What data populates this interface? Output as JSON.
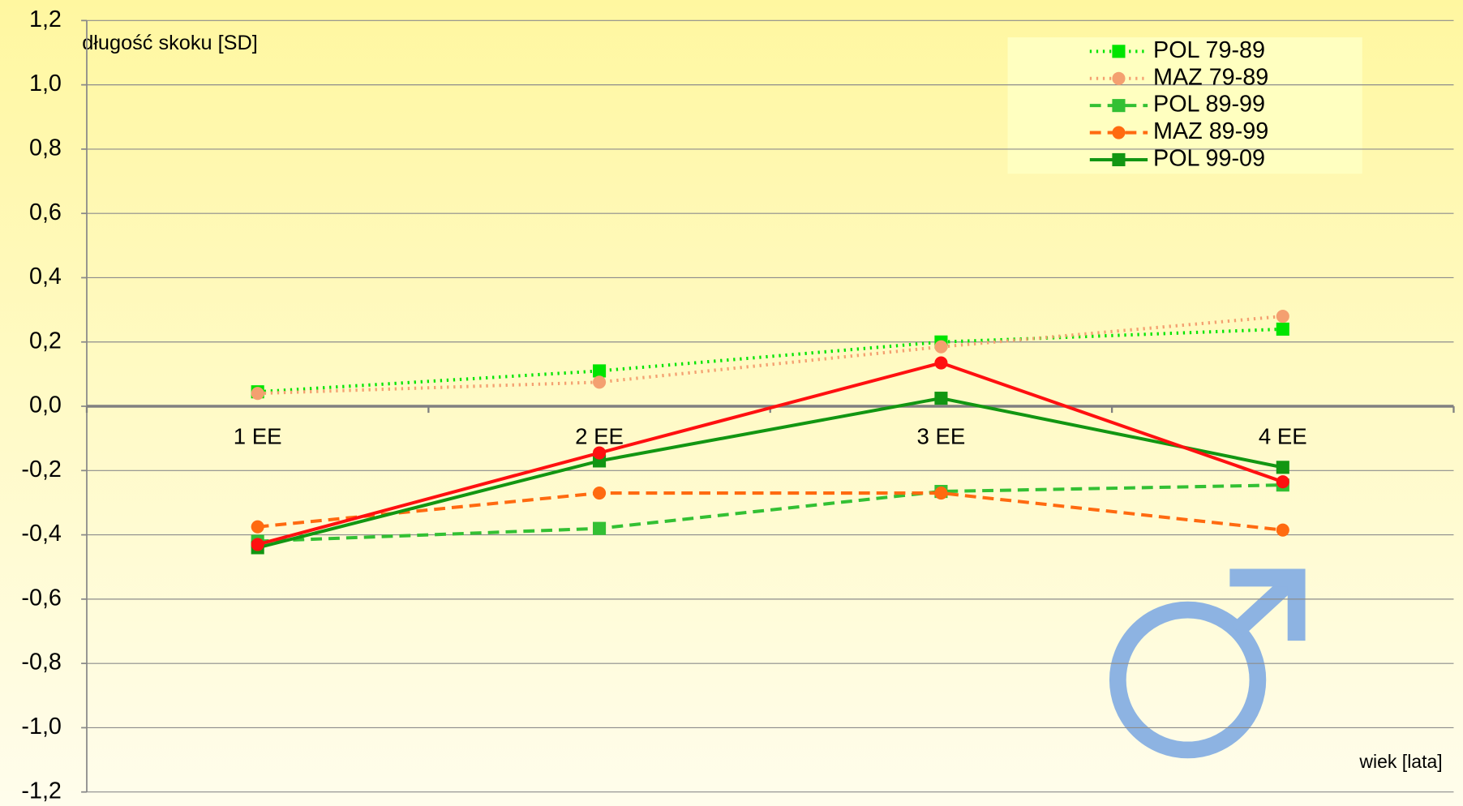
{
  "chart_data": {
    "type": "line",
    "ylabel": "długość skoku [SD]",
    "xlabel": "wiek [lata]",
    "categories": [
      "1 EE",
      "2 EE",
      "3 EE",
      "4 EE"
    ],
    "ylim": [
      -1.2,
      1.2
    ],
    "yticks": [
      {
        "value": 1.2,
        "label": "1,2"
      },
      {
        "value": 1.0,
        "label": "1,0"
      },
      {
        "value": 0.8,
        "label": "0,8"
      },
      {
        "value": 0.6,
        "label": "0,6"
      },
      {
        "value": 0.4,
        "label": "0,4"
      },
      {
        "value": 0.2,
        "label": "0,2"
      },
      {
        "value": 0,
        "label": "0,0"
      },
      {
        "value": -0.2,
        "label": "-0,2"
      },
      {
        "value": -0.4,
        "label": "-0,4"
      },
      {
        "value": -0.6,
        "label": "-0,6"
      },
      {
        "value": -0.8,
        "label": "-0,8"
      },
      {
        "value": -1.0,
        "label": "-1,0"
      },
      {
        "value": -1.2,
        "label": "-1,2"
      }
    ],
    "grid": true,
    "legend": "upper right",
    "series": [
      {
        "name": "POL 79-89",
        "color": "#00e400",
        "style": "dotted",
        "marker": "square",
        "values": [
          0.045,
          0.11,
          0.2,
          0.24
        ]
      },
      {
        "name": "MAZ 79-89",
        "color": "#f4a070",
        "style": "dotted",
        "marker": "circle",
        "values": [
          0.04,
          0.075,
          0.185,
          0.28
        ]
      },
      {
        "name": "POL 89-99",
        "color": "#33c033",
        "style": "dashed",
        "marker": "square",
        "values": [
          -0.42,
          -0.38,
          -0.265,
          -0.245
        ]
      },
      {
        "name": "MAZ 89-99",
        "color": "#ff6a10",
        "style": "dashed",
        "marker": "circle",
        "values": [
          -0.375,
          -0.27,
          -0.27,
          -0.385
        ]
      },
      {
        "name": "POL 99-09",
        "color": "#129612",
        "style": "solid",
        "marker": "square",
        "values": [
          -0.44,
          -0.17,
          0.025,
          -0.19
        ]
      },
      {
        "color": "#ff1010",
        "style": "solid",
        "marker": "circle",
        "values": [
          -0.43,
          -0.145,
          0.135,
          -0.235
        ]
      }
    ]
  }
}
